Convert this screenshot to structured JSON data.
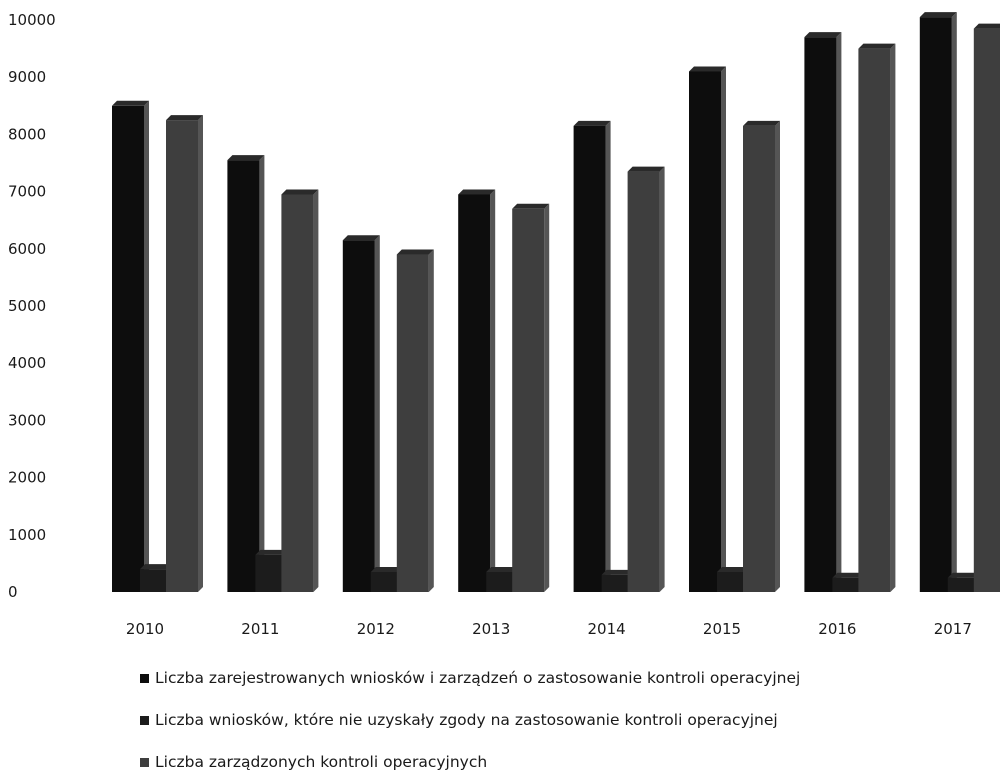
{
  "chart_data": {
    "type": "bar",
    "categories": [
      "2010",
      "2011",
      "2012",
      "2013",
      "2014",
      "2015",
      "2016",
      "2017"
    ],
    "series": [
      {
        "name": "Liczba zarejestrowanych wniosków i zarządzeń o zastosowanie kontroli operacyjnej",
        "color": "#0d0d0d",
        "values": [
          8500,
          7550,
          6150,
          6950,
          8150,
          9100,
          9700,
          10050
        ]
      },
      {
        "name": "Liczba wniosków, które nie uzyskały zgody na zastosowanie kontroli operacyjnej",
        "color": "#1c1c1c",
        "values": [
          400,
          650,
          350,
          350,
          300,
          350,
          250,
          250
        ]
      },
      {
        "name": "Liczba zarządzonych kontroli operacyjnych",
        "color": "#3e3e3e",
        "values": [
          8250,
          6950,
          5900,
          6700,
          7350,
          8150,
          9500,
          9850
        ]
      }
    ],
    "yticks": [
      "0",
      "1000",
      "2000",
      "3000",
      "4000",
      "5000",
      "6000",
      "7000",
      "8000",
      "9000",
      "10000"
    ],
    "ylim": [
      0,
      10000
    ],
    "grid": false,
    "legend_position": "bottom"
  }
}
